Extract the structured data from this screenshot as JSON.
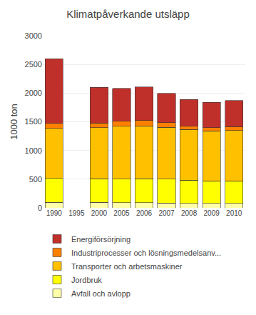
{
  "chart_data": {
    "type": "bar",
    "title": "Klimatpåverkande utsläpp",
    "ylabel": "1000 ton",
    "categories": [
      "1990",
      "1995",
      "2000",
      "2005",
      "2006",
      "2007",
      "2008",
      "2009",
      "2010"
    ],
    "series": [
      {
        "name": "Avfall och avlopp",
        "color": "#FFFFAA",
        "values": [
          95,
          null,
          95,
          90,
          90,
          85,
          80,
          80,
          80
        ]
      },
      {
        "name": "Jordbruk",
        "color": "#FFFF00",
        "values": [
          420,
          null,
          410,
          410,
          420,
          415,
          400,
          390,
          390
        ]
      },
      {
        "name": "Transporter och arbetsmaskiner",
        "color": "#FFC000",
        "values": [
          870,
          null,
          895,
          920,
          920,
          905,
          885,
          870,
          880
        ]
      },
      {
        "name": "Industriprocesser och lösningsmedelsanv...",
        "color": "#FF8000",
        "values": [
          85,
          null,
          80,
          90,
          90,
          80,
          60,
          60,
          65
        ]
      },
      {
        "name": "Energiförsörjning",
        "color": "#C0302A",
        "values": [
          1130,
          null,
          620,
          570,
          590,
          510,
          465,
          440,
          455
        ]
      }
    ],
    "ylim": [
      0,
      3000
    ],
    "yticks": [
      0,
      500,
      1000,
      1500,
      2000,
      2500,
      3000
    ],
    "stacked": true,
    "grid": true,
    "legend": "bottom"
  }
}
